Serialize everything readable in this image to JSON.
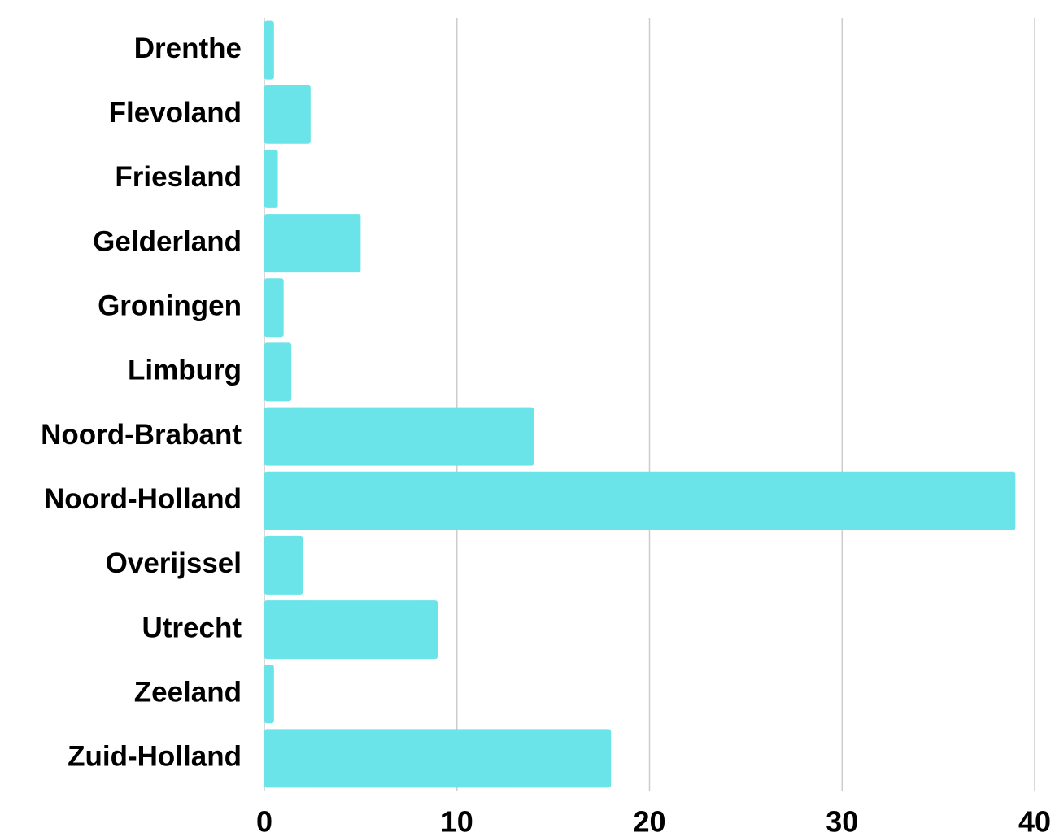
{
  "chart_data": {
    "type": "barh",
    "categories": [
      "Drenthe",
      "Flevoland",
      "Friesland",
      "Gelderland",
      "Groningen",
      "Limburg",
      "Noord-Brabant",
      "Noord-Holland",
      "Overijssel",
      "Utrecht",
      "Zeeland",
      "Zuid-Holland"
    ],
    "values": [
      0.5,
      2.4,
      0.7,
      5,
      1,
      1.4,
      14,
      39,
      2,
      9,
      0.5,
      18
    ],
    "color": "#6ae4e8",
    "xlim": [
      0,
      40
    ],
    "xticks": [
      0,
      10,
      20,
      30,
      40
    ],
    "grid": true
  }
}
